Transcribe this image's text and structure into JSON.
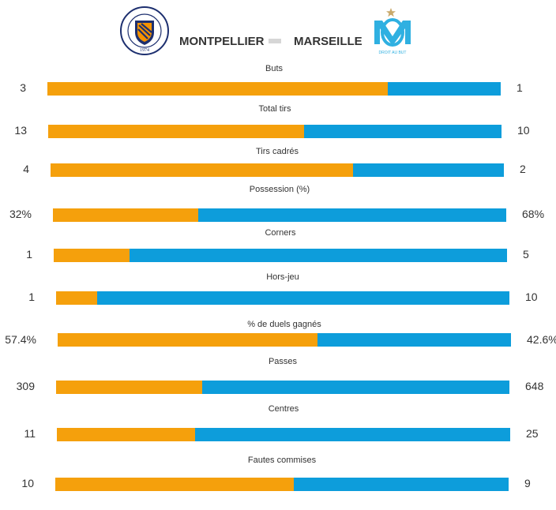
{
  "match": {
    "home_team": "MONTPELLIER",
    "away_team": "MARSEILLE",
    "home_crest_year": "1974",
    "home_crest_text": "MONTPELLIER Hérault Sport Club",
    "away_crest_motto": "DROIT AU BUT"
  },
  "colors": {
    "home": "#f5a00c",
    "away": "#0d9ddb"
  },
  "chart_data": {
    "type": "bar",
    "orientation": "horizontal-stacked",
    "series": [
      {
        "name": "MONTPELLIER",
        "values": [
          3,
          13,
          4,
          32,
          1,
          1,
          57.4,
          309,
          11,
          10
        ]
      },
      {
        "name": "MARSEILLE",
        "values": [
          1,
          10,
          2,
          68,
          5,
          10,
          42.6,
          648,
          25,
          9
        ]
      }
    ],
    "categories": [
      "Buts",
      "Total tirs",
      "Tirs cadrés",
      "Possession (%)",
      "Corners",
      "Hors-jeu",
      "% de duels gagnés",
      "Passes",
      "Centres",
      "Fautes commises"
    ],
    "home_labels": [
      "3",
      "13",
      "4",
      "32%",
      "1",
      "1",
      "57.4%",
      "309",
      "11",
      "10"
    ],
    "away_labels": [
      "1",
      "10",
      "2",
      "68%",
      "5",
      "10",
      "42.6%",
      "648",
      "25",
      "9"
    ]
  }
}
